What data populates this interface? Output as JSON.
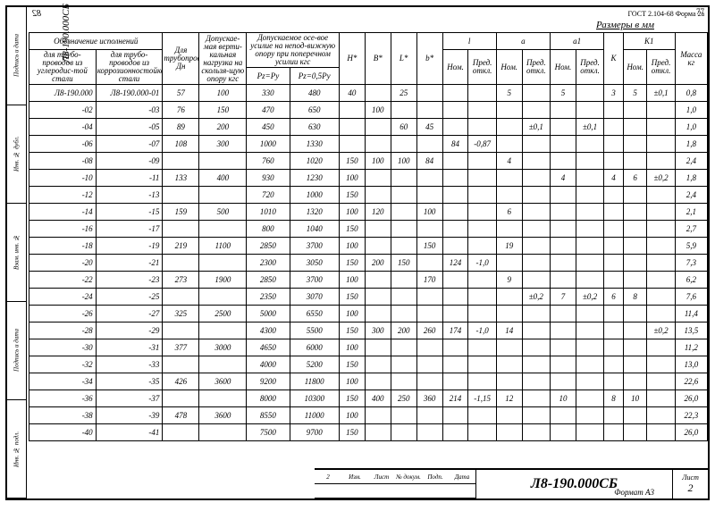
{
  "meta": {
    "page_left": "82",
    "page_right": "77",
    "code_flipped": "Л8-190.000СБ",
    "gost": "ГОСТ 2.104-68  Форма 2а",
    "dimensions_label": "Размеры в мм",
    "format": "Формат А3",
    "sheet_label": "Лист",
    "sheet_num": "2",
    "title_code": "Л8-190.000СБ"
  },
  "left_margin": [
    "Инв. № подл.",
    "Подпись и дата",
    "Взам. инв. №",
    "Инв. № дубл.",
    "Подпись и дата"
  ],
  "hdr": {
    "c1": "Обозначение исполнений",
    "c1a": "для трубо-проводов из углеродис-той стали",
    "c1b": "для трубо-проводов из коррозионностойкой стали",
    "c2": "Для трубопроводов Дн",
    "c3": "Допускае-мая верти-кальная нагрузка на скользя-щую опору кгс",
    "c4": "Допускаемое осе-вое усилие на непод-вижную опору при поперечном усилии кгс",
    "c4a": "Pz=Py",
    "c4b": "Pz=0,5Py",
    "H": "H*",
    "B": "B*",
    "L": "L*",
    "b": "b*",
    "l": "l",
    "a": "a",
    "a1": "a1",
    "K": "K",
    "K1": "K1",
    "nom": "Ном.",
    "pred": "Пред. откл.",
    "mass": "Масса кг"
  },
  "rows": [
    {
      "d1": "Л8-190.000",
      "d2": "Л8-190.000-01",
      "dn": "57",
      "vn": "100",
      "pz1": "330",
      "pz2": "480",
      "H": "40",
      "B": "",
      "L": "25",
      "b": "",
      "ln": "",
      "lp": "",
      "an": "5",
      "ap": "",
      "a1n": "5",
      "a1p": "",
      "K": "3",
      "K1n": "5",
      "K1p": "±0,1",
      "m": "0,8"
    },
    {
      "d1": "-02",
      "d2": "-03",
      "dn": "76",
      "vn": "150",
      "pz1": "470",
      "pz2": "650",
      "H": "",
      "B": "100",
      "L": "",
      "b": "",
      "ln": "",
      "lp": "",
      "an": "",
      "ap": "",
      "a1n": "",
      "a1p": "",
      "K": "",
      "K1n": "",
      "K1p": "",
      "m": "1,0"
    },
    {
      "d1": "-04",
      "d2": "-05",
      "dn": "89",
      "vn": "200",
      "pz1": "450",
      "pz2": "630",
      "H": "",
      "B": "",
      "L": "60",
      "b": "45",
      "ln": "",
      "lp": "",
      "an": "",
      "ap": "±0,1",
      "a1n": "",
      "a1p": "±0,1",
      "K": "",
      "K1n": "",
      "K1p": "",
      "m": "1,0"
    },
    {
      "d1": "-06",
      "d2": "-07",
      "dn": "108",
      "vn": "300",
      "pz1": "1000",
      "pz2": "1330",
      "H": "",
      "B": "",
      "L": "",
      "b": "",
      "ln": "84",
      "lp": "-0,87",
      "an": "",
      "ap": "",
      "a1n": "",
      "a1p": "",
      "K": "",
      "K1n": "",
      "K1p": "",
      "m": "1,8"
    },
    {
      "d1": "-08",
      "d2": "-09",
      "dn": "",
      "vn": "",
      "pz1": "760",
      "pz2": "1020",
      "H": "150",
      "B": "100",
      "L": "100",
      "b": "84",
      "ln": "",
      "lp": "",
      "an": "4",
      "ap": "",
      "a1n": "",
      "a1p": "",
      "K": "",
      "K1n": "",
      "K1p": "",
      "m": "2,4"
    },
    {
      "d1": "-10",
      "d2": "-11",
      "dn": "133",
      "vn": "400",
      "pz1": "930",
      "pz2": "1230",
      "H": "100",
      "B": "",
      "L": "",
      "b": "",
      "ln": "",
      "lp": "",
      "an": "",
      "ap": "",
      "a1n": "4",
      "a1p": "",
      "K": "4",
      "K1n": "6",
      "K1p": "±0,2",
      "m": "1,8"
    },
    {
      "d1": "-12",
      "d2": "-13",
      "dn": "",
      "vn": "",
      "pz1": "720",
      "pz2": "1000",
      "H": "150",
      "B": "",
      "L": "",
      "b": "",
      "ln": "",
      "lp": "",
      "an": "",
      "ap": "",
      "a1n": "",
      "a1p": "",
      "K": "",
      "K1n": "",
      "K1p": "",
      "m": "2,4"
    },
    {
      "d1": "-14",
      "d2": "-15",
      "dn": "159",
      "vn": "500",
      "pz1": "1010",
      "pz2": "1320",
      "H": "100",
      "B": "120",
      "L": "",
      "b": "100",
      "ln": "",
      "lp": "",
      "an": "6",
      "ap": "",
      "a1n": "",
      "a1p": "",
      "K": "",
      "K1n": "",
      "K1p": "",
      "m": "2,1"
    },
    {
      "d1": "-16",
      "d2": "-17",
      "dn": "",
      "vn": "",
      "pz1": "800",
      "pz2": "1040",
      "H": "150",
      "B": "",
      "L": "",
      "b": "",
      "ln": "",
      "lp": "",
      "an": "",
      "ap": "",
      "a1n": "",
      "a1p": "",
      "K": "",
      "K1n": "",
      "K1p": "",
      "m": "2,7"
    },
    {
      "d1": "-18",
      "d2": "-19",
      "dn": "219",
      "vn": "1100",
      "pz1": "2850",
      "pz2": "3700",
      "H": "100",
      "B": "",
      "L": "",
      "b": "150",
      "ln": "",
      "lp": "",
      "an": "19",
      "ap": "",
      "a1n": "",
      "a1p": "",
      "K": "",
      "K1n": "",
      "K1p": "",
      "m": "5,9"
    },
    {
      "d1": "-20",
      "d2": "-21",
      "dn": "",
      "vn": "",
      "pz1": "2300",
      "pz2": "3050",
      "H": "150",
      "B": "200",
      "L": "150",
      "b": "",
      "ln": "124",
      "lp": "-1,0",
      "an": "",
      "ap": "",
      "a1n": "",
      "a1p": "",
      "K": "",
      "K1n": "",
      "K1p": "",
      "m": "7,3"
    },
    {
      "d1": "-22",
      "d2": "-23",
      "dn": "273",
      "vn": "1900",
      "pz1": "2850",
      "pz2": "3700",
      "H": "100",
      "B": "",
      "L": "",
      "b": "170",
      "ln": "",
      "lp": "",
      "an": "9",
      "ap": "",
      "a1n": "",
      "a1p": "",
      "K": "",
      "K1n": "",
      "K1p": "",
      "m": "6,2"
    },
    {
      "d1": "-24",
      "d2": "-25",
      "dn": "",
      "vn": "",
      "pz1": "2350",
      "pz2": "3070",
      "H": "150",
      "B": "",
      "L": "",
      "b": "",
      "ln": "",
      "lp": "",
      "an": "",
      "ap": "±0,2",
      "a1n": "7",
      "a1p": "±0,2",
      "K": "6",
      "K1n": "8",
      "K1p": "",
      "m": "7,6"
    },
    {
      "d1": "-26",
      "d2": "-27",
      "dn": "325",
      "vn": "2500",
      "pz1": "5000",
      "pz2": "6550",
      "H": "100",
      "B": "",
      "L": "",
      "b": "",
      "ln": "",
      "lp": "",
      "an": "",
      "ap": "",
      "a1n": "",
      "a1p": "",
      "K": "",
      "K1n": "",
      "K1p": "",
      "m": "11,4"
    },
    {
      "d1": "-28",
      "d2": "-29",
      "dn": "",
      "vn": "",
      "pz1": "4300",
      "pz2": "5500",
      "H": "150",
      "B": "300",
      "L": "200",
      "b": "260",
      "ln": "174",
      "lp": "-1,0",
      "an": "14",
      "ap": "",
      "a1n": "",
      "a1p": "",
      "K": "",
      "K1n": "",
      "K1p": "±0,2",
      "m": "13,5"
    },
    {
      "d1": "-30",
      "d2": "-31",
      "dn": "377",
      "vn": "3000",
      "pz1": "4650",
      "pz2": "6000",
      "H": "100",
      "B": "",
      "L": "",
      "b": "",
      "ln": "",
      "lp": "",
      "an": "",
      "ap": "",
      "a1n": "",
      "a1p": "",
      "K": "",
      "K1n": "",
      "K1p": "",
      "m": "11,2"
    },
    {
      "d1": "-32",
      "d2": "-33",
      "dn": "",
      "vn": "",
      "pz1": "4000",
      "pz2": "5200",
      "H": "150",
      "B": "",
      "L": "",
      "b": "",
      "ln": "",
      "lp": "",
      "an": "",
      "ap": "",
      "a1n": "",
      "a1p": "",
      "K": "",
      "K1n": "",
      "K1p": "",
      "m": "13,0"
    },
    {
      "d1": "-34",
      "d2": "-35",
      "dn": "426",
      "vn": "3600",
      "pz1": "9200",
      "pz2": "11800",
      "H": "100",
      "B": "",
      "L": "",
      "b": "",
      "ln": "",
      "lp": "",
      "an": "",
      "ap": "",
      "a1n": "",
      "a1p": "",
      "K": "",
      "K1n": "",
      "K1p": "",
      "m": "22,6"
    },
    {
      "d1": "-36",
      "d2": "-37",
      "dn": "",
      "vn": "",
      "pz1": "8000",
      "pz2": "10300",
      "H": "150",
      "B": "400",
      "L": "250",
      "b": "360",
      "ln": "214",
      "lp": "-1,15",
      "an": "12",
      "ap": "",
      "a1n": "10",
      "a1p": "",
      "K": "8",
      "K1n": "10",
      "K1p": "",
      "m": "26,0"
    },
    {
      "d1": "-38",
      "d2": "-39",
      "dn": "478",
      "vn": "3600",
      "pz1": "8550",
      "pz2": "11000",
      "H": "100",
      "B": "",
      "L": "",
      "b": "",
      "ln": "",
      "lp": "",
      "an": "",
      "ap": "",
      "a1n": "",
      "a1p": "",
      "K": "",
      "K1n": "",
      "K1p": "",
      "m": "22,3"
    },
    {
      "d1": "-40",
      "d2": "-41",
      "dn": "",
      "vn": "",
      "pz1": "7500",
      "pz2": "9700",
      "H": "150",
      "B": "",
      "L": "",
      "b": "",
      "ln": "",
      "lp": "",
      "an": "",
      "ap": "",
      "a1n": "",
      "a1p": "",
      "K": "",
      "K1n": "",
      "K1p": "",
      "m": "26,0"
    }
  ]
}
